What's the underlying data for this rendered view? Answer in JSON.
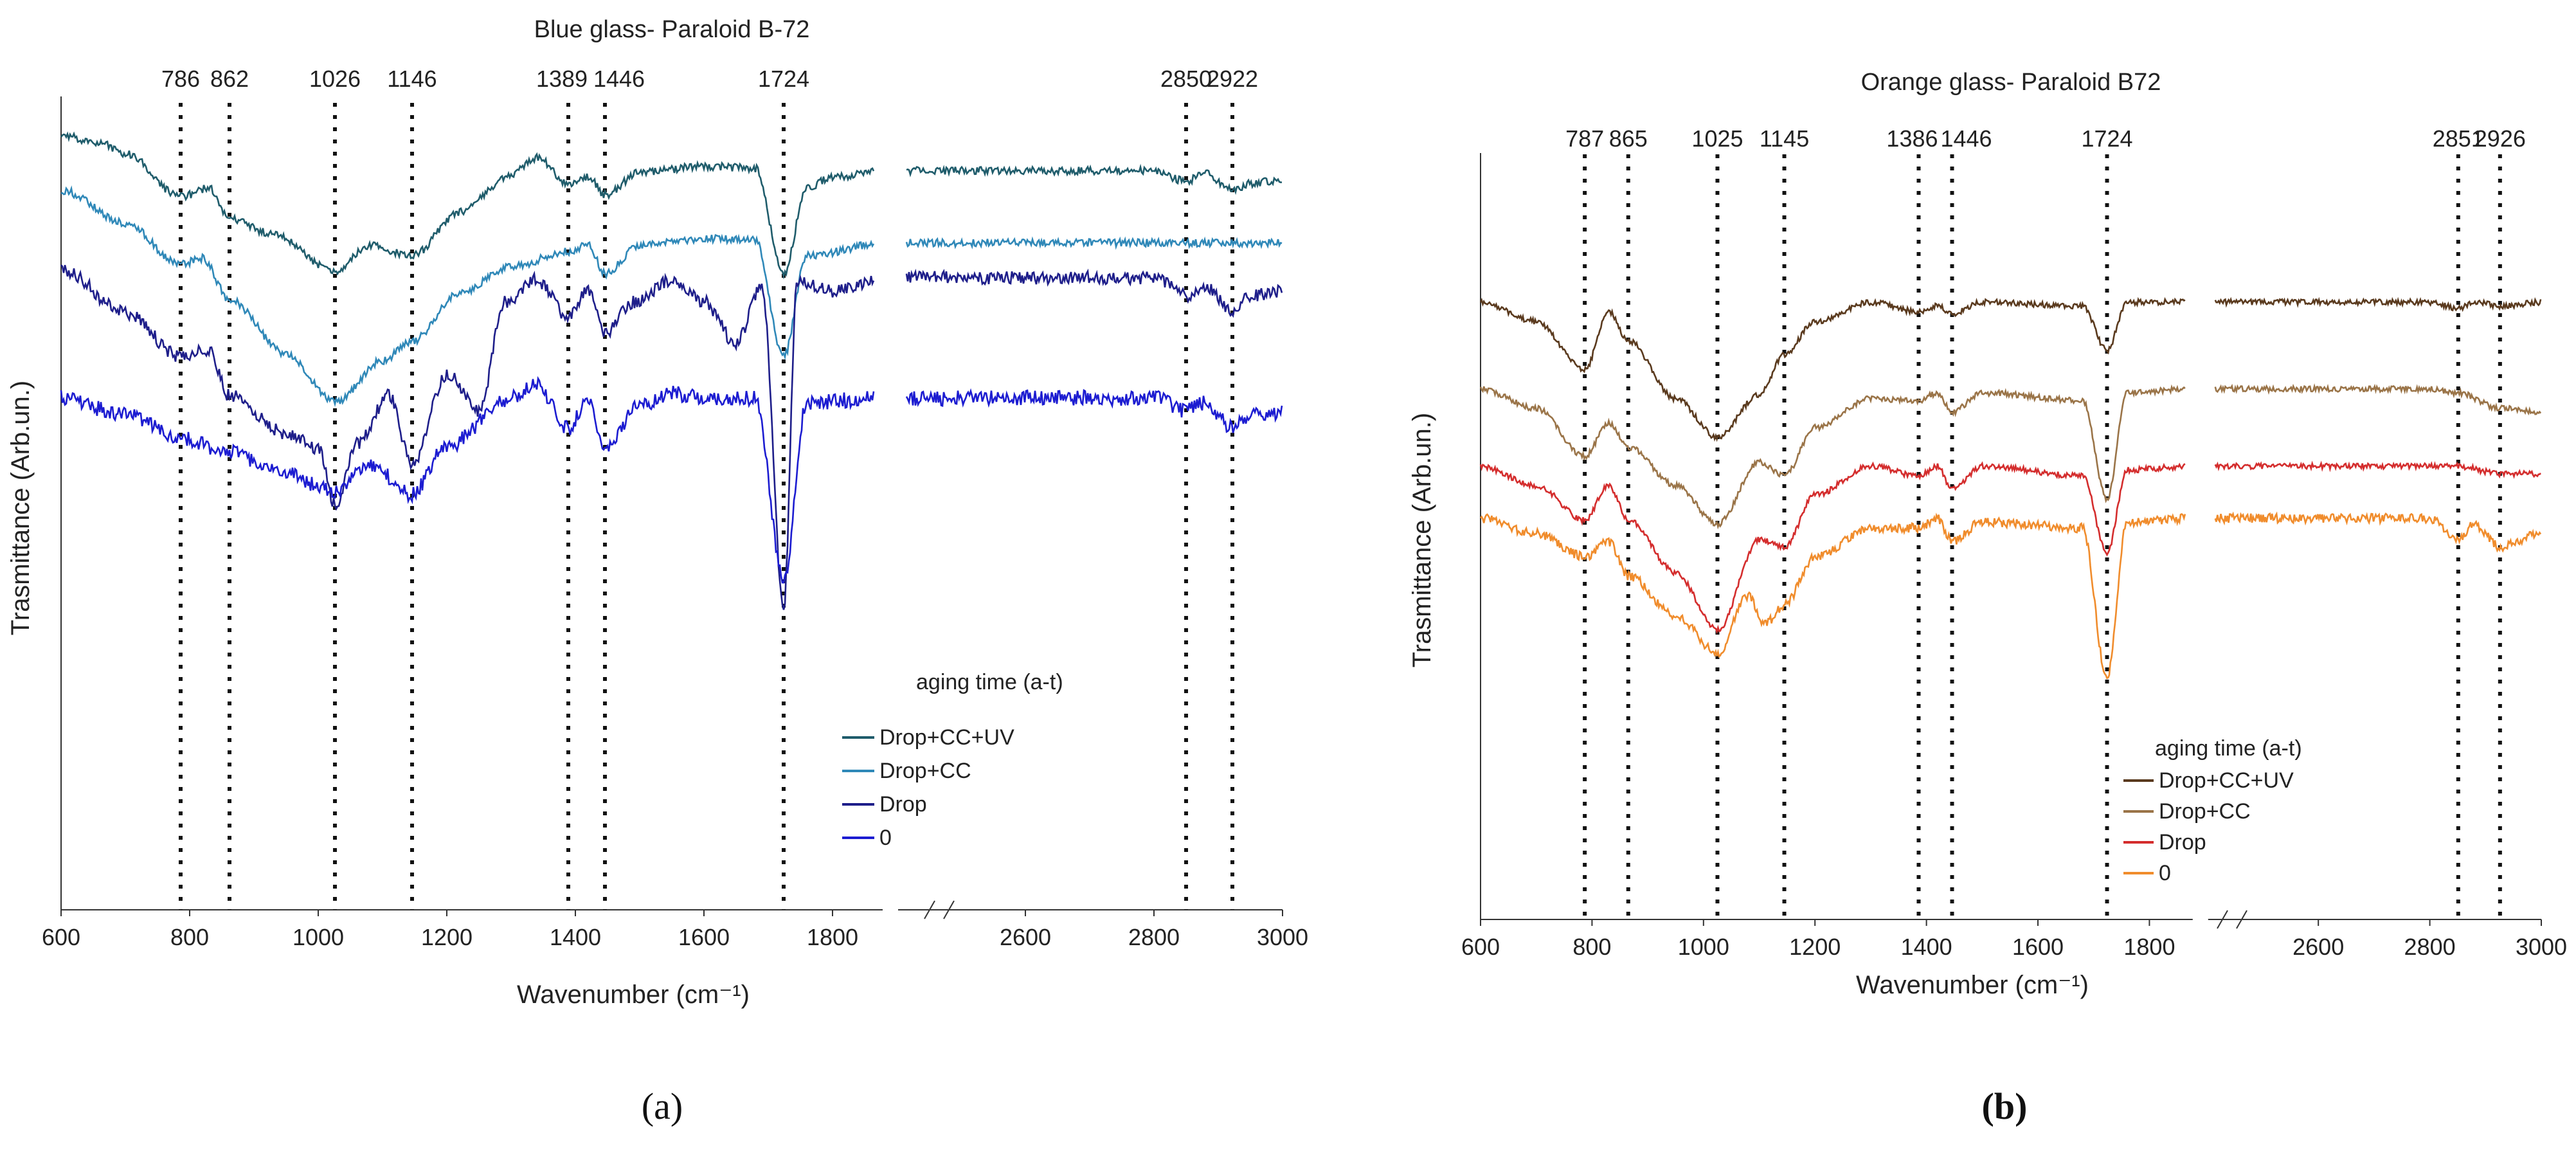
{
  "chart_data": [
    {
      "type": "line",
      "panel_label": "(a)",
      "title": "Blue glass- Paraloid B-72",
      "xlabel": "Wavenumber (cm⁻¹)",
      "ylabel": "Trasmittance (Arb.un.)",
      "x_segments": [
        [
          600,
          1880
        ],
        [
          2400,
          3000
        ]
      ],
      "x_ticks": [
        600,
        800,
        1000,
        1200,
        1400,
        1600,
        1800,
        2600,
        2800,
        3000
      ],
      "x_tick_labels": [
        "600",
        "800",
        "1000",
        "1200",
        "1400",
        "1600",
        "1800",
        "2600",
        "2800",
        "3000"
      ],
      "peak_lines": [
        786,
        862,
        1026,
        1146,
        1389,
        1446,
        1724,
        2850,
        2922
      ],
      "peak_labels": [
        "786",
        "862",
        "1026",
        "1146",
        "1389",
        "1446",
        "1724",
        "2850",
        "2922"
      ],
      "legend_title": "aging time (a-t)",
      "series": [
        {
          "name": "Drop+CC+UV",
          "color": "#1f5c6b",
          "offset": 0.15,
          "noise": 0.006,
          "points": [
            [
              600,
              0.0
            ],
            [
              660,
              0.03
            ],
            [
              700,
              0.08
            ],
            [
              786,
              0.28
            ],
            [
              830,
              0.24
            ],
            [
              862,
              0.38
            ],
            [
              930,
              0.45
            ],
            [
              1026,
              0.62
            ],
            [
              1080,
              0.5
            ],
            [
              1146,
              0.55
            ],
            [
              1220,
              0.35
            ],
            [
              1300,
              0.18
            ],
            [
              1340,
              0.1
            ],
            [
              1389,
              0.22
            ],
            [
              1420,
              0.19
            ],
            [
              1446,
              0.27
            ],
            [
              1500,
              0.17
            ],
            [
              1600,
              0.14
            ],
            [
              1680,
              0.15
            ],
            [
              1724,
              0.63
            ],
            [
              1760,
              0.24
            ],
            [
              1800,
              0.19
            ],
            [
              1880,
              0.16
            ],
            [
              2400,
              0.16
            ],
            [
              2800,
              0.16
            ],
            [
              2850,
              0.21
            ],
            [
              2880,
              0.17
            ],
            [
              2922,
              0.25
            ],
            [
              2950,
              0.22
            ],
            [
              3000,
              0.2
            ]
          ]
        },
        {
          "name": "Drop+CC",
          "color": "#2f88b8",
          "offset": 0.4,
          "noise": 0.006,
          "points": [
            [
              600,
              0.0
            ],
            [
              700,
              0.15
            ],
            [
              786,
              0.34
            ],
            [
              820,
              0.31
            ],
            [
              862,
              0.5
            ],
            [
              950,
              0.75
            ],
            [
              1026,
              0.97
            ],
            [
              1100,
              0.78
            ],
            [
              1146,
              0.69
            ],
            [
              1220,
              0.47
            ],
            [
              1300,
              0.35
            ],
            [
              1389,
              0.28
            ],
            [
              1420,
              0.25
            ],
            [
              1446,
              0.38
            ],
            [
              1500,
              0.25
            ],
            [
              1600,
              0.22
            ],
            [
              1680,
              0.23
            ],
            [
              1724,
              0.76
            ],
            [
              1760,
              0.3
            ],
            [
              1880,
              0.24
            ],
            [
              2400,
              0.24
            ],
            [
              3000,
              0.24
            ]
          ]
        },
        {
          "name": "Drop",
          "color": "#1e1e8a",
          "offset": 0.76,
          "noise": 0.01,
          "points": [
            [
              600,
              0.0
            ],
            [
              700,
              0.2
            ],
            [
              786,
              0.4
            ],
            [
              830,
              0.37
            ],
            [
              862,
              0.58
            ],
            [
              950,
              0.75
            ],
            [
              1000,
              0.82
            ],
            [
              1026,
              1.08
            ],
            [
              1060,
              0.8
            ],
            [
              1110,
              0.58
            ],
            [
              1146,
              0.9
            ],
            [
              1200,
              0.48
            ],
            [
              1250,
              0.65
            ],
            [
              1290,
              0.15
            ],
            [
              1340,
              0.05
            ],
            [
              1389,
              0.22
            ],
            [
              1420,
              0.1
            ],
            [
              1446,
              0.3
            ],
            [
              1490,
              0.15
            ],
            [
              1550,
              0.05
            ],
            [
              1600,
              0.15
            ],
            [
              1650,
              0.34
            ],
            [
              1690,
              0.08
            ],
            [
              1724,
              1.55
            ],
            [
              1745,
              0.05
            ],
            [
              1800,
              0.1
            ],
            [
              1880,
              0.04
            ],
            [
              2400,
              0.04
            ],
            [
              2800,
              0.04
            ],
            [
              2850,
              0.12
            ],
            [
              2880,
              0.08
            ],
            [
              2922,
              0.2
            ],
            [
              2950,
              0.12
            ],
            [
              3000,
              0.1
            ]
          ]
        },
        {
          "name": "0",
          "color": "#1c1cd1",
          "offset": 1.35,
          "noise": 0.012,
          "points": [
            [
              600,
              0.0
            ],
            [
              700,
              0.08
            ],
            [
              786,
              0.18
            ],
            [
              862,
              0.25
            ],
            [
              950,
              0.35
            ],
            [
              1026,
              0.43
            ],
            [
              1080,
              0.3
            ],
            [
              1146,
              0.44
            ],
            [
              1200,
              0.22
            ],
            [
              1300,
              0.0
            ],
            [
              1340,
              -0.06
            ],
            [
              1389,
              0.14
            ],
            [
              1420,
              0.0
            ],
            [
              1446,
              0.22
            ],
            [
              1500,
              0.04
            ],
            [
              1550,
              -0.02
            ],
            [
              1600,
              0.0
            ],
            [
              1680,
              0.0
            ],
            [
              1724,
              0.83
            ],
            [
              1760,
              0.02
            ],
            [
              1880,
              0.0
            ],
            [
              2400,
              0.0
            ],
            [
              2800,
              0.0
            ],
            [
              2850,
              0.06
            ],
            [
              2880,
              0.02
            ],
            [
              2922,
              0.14
            ],
            [
              2950,
              0.08
            ],
            [
              3000,
              0.07
            ]
          ]
        }
      ]
    },
    {
      "type": "line",
      "panel_label": "(b)",
      "title": "Orange glass- Paraloid B72",
      "xlabel": "Wavenumber (cm⁻¹)",
      "ylabel": "Trasmittance (Arb.un.)",
      "x_segments": [
        [
          600,
          1880
        ],
        [
          2400,
          3000
        ]
      ],
      "x_ticks": [
        600,
        800,
        1000,
        1200,
        1400,
        1600,
        1800,
        2600,
        2800,
        3000
      ],
      "x_tick_labels": [
        "600",
        "800",
        "1000",
        "1200",
        "1400",
        "1600",
        "1800",
        "2600",
        "2800",
        "3000"
      ],
      "peak_lines": [
        787,
        865,
        1025,
        1145,
        1386,
        1446,
        1724,
        2851,
        2926
      ],
      "peak_labels": [
        "787",
        "865",
        "1025",
        "1145",
        "1386",
        "1446",
        "1724",
        "2851",
        "2926"
      ],
      "legend_title": "aging time (a-t)",
      "series": [
        {
          "name": "Drop+CC+UV",
          "color": "#5a3a1e",
          "offset": 0.25,
          "noise": 0.005,
          "points": [
            [
              600,
              0.0
            ],
            [
              700,
              0.1
            ],
            [
              787,
              0.35
            ],
            [
              830,
              0.05
            ],
            [
              865,
              0.2
            ],
            [
              950,
              0.5
            ],
            [
              1025,
              0.7
            ],
            [
              1100,
              0.48
            ],
            [
              1145,
              0.27
            ],
            [
              1200,
              0.1
            ],
            [
              1300,
              0.0
            ],
            [
              1386,
              0.05
            ],
            [
              1420,
              0.02
            ],
            [
              1446,
              0.06
            ],
            [
              1500,
              0.0
            ],
            [
              1680,
              0.02
            ],
            [
              1724,
              0.25
            ],
            [
              1760,
              0.0
            ],
            [
              1880,
              0.0
            ],
            [
              2400,
              0.0
            ],
            [
              2800,
              0.0
            ],
            [
              2851,
              0.03
            ],
            [
              2880,
              0.0
            ],
            [
              2926,
              0.02
            ],
            [
              3000,
              0.0
            ]
          ]
        },
        {
          "name": "Drop+CC",
          "color": "#9a7448",
          "offset": 0.7,
          "noise": 0.005,
          "points": [
            [
              600,
              0.0
            ],
            [
              700,
              0.1
            ],
            [
              787,
              0.35
            ],
            [
              830,
              0.18
            ],
            [
              865,
              0.3
            ],
            [
              950,
              0.5
            ],
            [
              1025,
              0.7
            ],
            [
              1100,
              0.38
            ],
            [
              1145,
              0.45
            ],
            [
              1200,
              0.2
            ],
            [
              1300,
              0.05
            ],
            [
              1386,
              0.06
            ],
            [
              1420,
              0.02
            ],
            [
              1446,
              0.12
            ],
            [
              1500,
              0.02
            ],
            [
              1680,
              0.06
            ],
            [
              1724,
              0.57
            ],
            [
              1760,
              0.02
            ],
            [
              1880,
              0.0
            ],
            [
              2400,
              0.0
            ],
            [
              2800,
              0.0
            ],
            [
              2851,
              0.02
            ],
            [
              2926,
              0.1
            ],
            [
              3000,
              0.12
            ]
          ]
        },
        {
          "name": "Drop",
          "color": "#d42d2d",
          "offset": 1.1,
          "noise": 0.005,
          "points": [
            [
              600,
              0.0
            ],
            [
              700,
              0.1
            ],
            [
              787,
              0.28
            ],
            [
              830,
              0.1
            ],
            [
              865,
              0.28
            ],
            [
              950,
              0.55
            ],
            [
              1025,
              0.85
            ],
            [
              1100,
              0.38
            ],
            [
              1145,
              0.42
            ],
            [
              1200,
              0.15
            ],
            [
              1300,
              0.0
            ],
            [
              1386,
              0.05
            ],
            [
              1420,
              0.0
            ],
            [
              1446,
              0.12
            ],
            [
              1500,
              0.0
            ],
            [
              1680,
              0.05
            ],
            [
              1724,
              0.45
            ],
            [
              1760,
              0.02
            ],
            [
              1880,
              0.0
            ],
            [
              2400,
              0.0
            ],
            [
              2800,
              0.0
            ],
            [
              2851,
              0.0
            ],
            [
              2926,
              0.04
            ],
            [
              3000,
              0.04
            ]
          ]
        },
        {
          "name": "0",
          "color": "#f08c2c",
          "offset": 1.37,
          "noise": 0.008,
          "points": [
            [
              600,
              0.0
            ],
            [
              700,
              0.08
            ],
            [
              787,
              0.2
            ],
            [
              830,
              0.12
            ],
            [
              865,
              0.3
            ],
            [
              950,
              0.5
            ],
            [
              1025,
              0.7
            ],
            [
              1080,
              0.4
            ],
            [
              1110,
              0.55
            ],
            [
              1145,
              0.45
            ],
            [
              1200,
              0.2
            ],
            [
              1300,
              0.05
            ],
            [
              1386,
              0.05
            ],
            [
              1420,
              0.0
            ],
            [
              1446,
              0.12
            ],
            [
              1500,
              0.02
            ],
            [
              1680,
              0.05
            ],
            [
              1724,
              0.83
            ],
            [
              1760,
              0.02
            ],
            [
              1880,
              0.0
            ],
            [
              2400,
              0.0
            ],
            [
              2800,
              0.0
            ],
            [
              2851,
              0.12
            ],
            [
              2880,
              0.03
            ],
            [
              2926,
              0.15
            ],
            [
              3000,
              0.08
            ]
          ]
        }
      ]
    }
  ]
}
